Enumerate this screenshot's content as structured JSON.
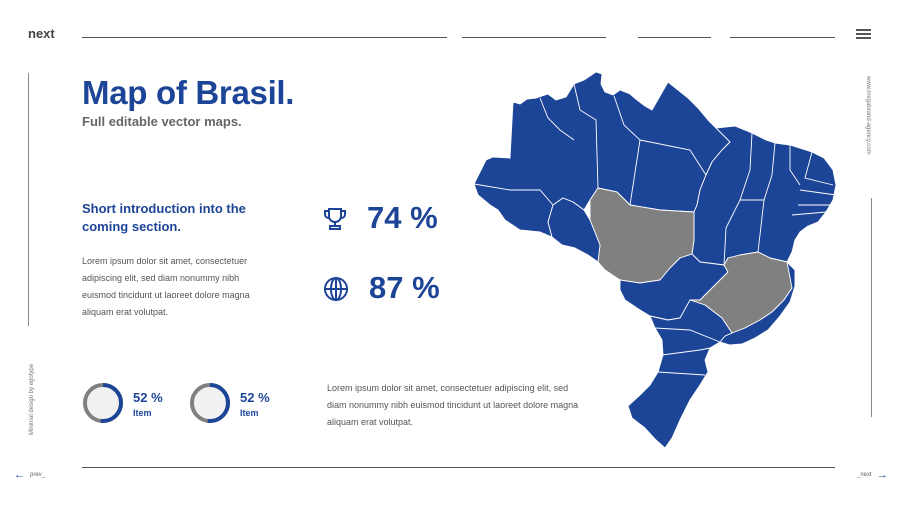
{
  "header": {
    "logo": "next"
  },
  "sidebar_left": {
    "vertical_text": "Minimal design by egotype"
  },
  "sidebar_right": {
    "vertical_text": "www.megabrand-agency.com"
  },
  "title": "Map of Brasil.",
  "subtitle": "Full editable vector maps.",
  "intro": {
    "heading": "Short introduction into the coming section.",
    "body": "Lorem ipsum dolor sit amet, consectetuer adipiscing elit, sed diam nonummy nibh euismod tincidunt ut laoreet dolore magna aliquam erat volutpat."
  },
  "stats": [
    {
      "icon": "trophy-icon",
      "value": "74 %"
    },
    {
      "icon": "globe-icon",
      "value": "87 %"
    }
  ],
  "rings": [
    {
      "percent_label": "52 %",
      "label": "Item",
      "fraction": 0.52
    },
    {
      "percent_label": "52 %",
      "label": "Item",
      "fraction": 0.52
    }
  ],
  "body2": "Lorem ipsum dolor sit amet, consectetuer adipiscing elit, sed diam nonummy nibh euismod tincidunt ut laoreet dolore magna aliquam erat volutpat.",
  "footer": {
    "prev_label": "prev_",
    "next_label": "_next"
  },
  "colors": {
    "accent": "#1d4597",
    "highlight_region": "#808080",
    "ring_track": "#808080"
  }
}
